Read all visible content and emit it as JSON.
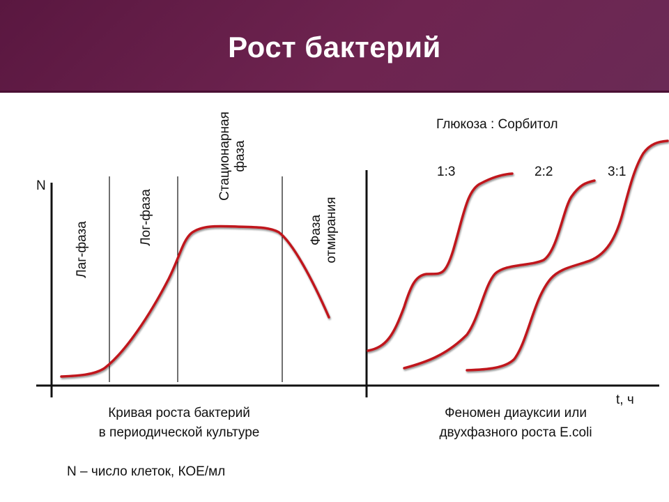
{
  "slide": {
    "title": "Рост бактерий"
  },
  "left_plot": {
    "y_label": "N",
    "phases": [
      {
        "label": "Лаг-фаза"
      },
      {
        "label": "Лог-фаза"
      },
      {
        "label": "Стационарная фаза"
      },
      {
        "label": "Фаза отмирания"
      }
    ],
    "caption_line1": "Кривая роста бактерий",
    "caption_line2": "в периодической культуре"
  },
  "right_plot": {
    "ratio_header": "Глюкоза : Сорбитол",
    "ratios": [
      "1:3",
      "2:2",
      "3:1"
    ],
    "x_label": "t, ч",
    "caption_line1": "Феномен диауксии или",
    "caption_line2": "двухфазного роста E.coli"
  },
  "legend_note": "N – число клеток, КОЕ/мл",
  "colors": {
    "header": "#6a1f4d",
    "curve": "#c0141c",
    "axis": "#111111"
  }
}
